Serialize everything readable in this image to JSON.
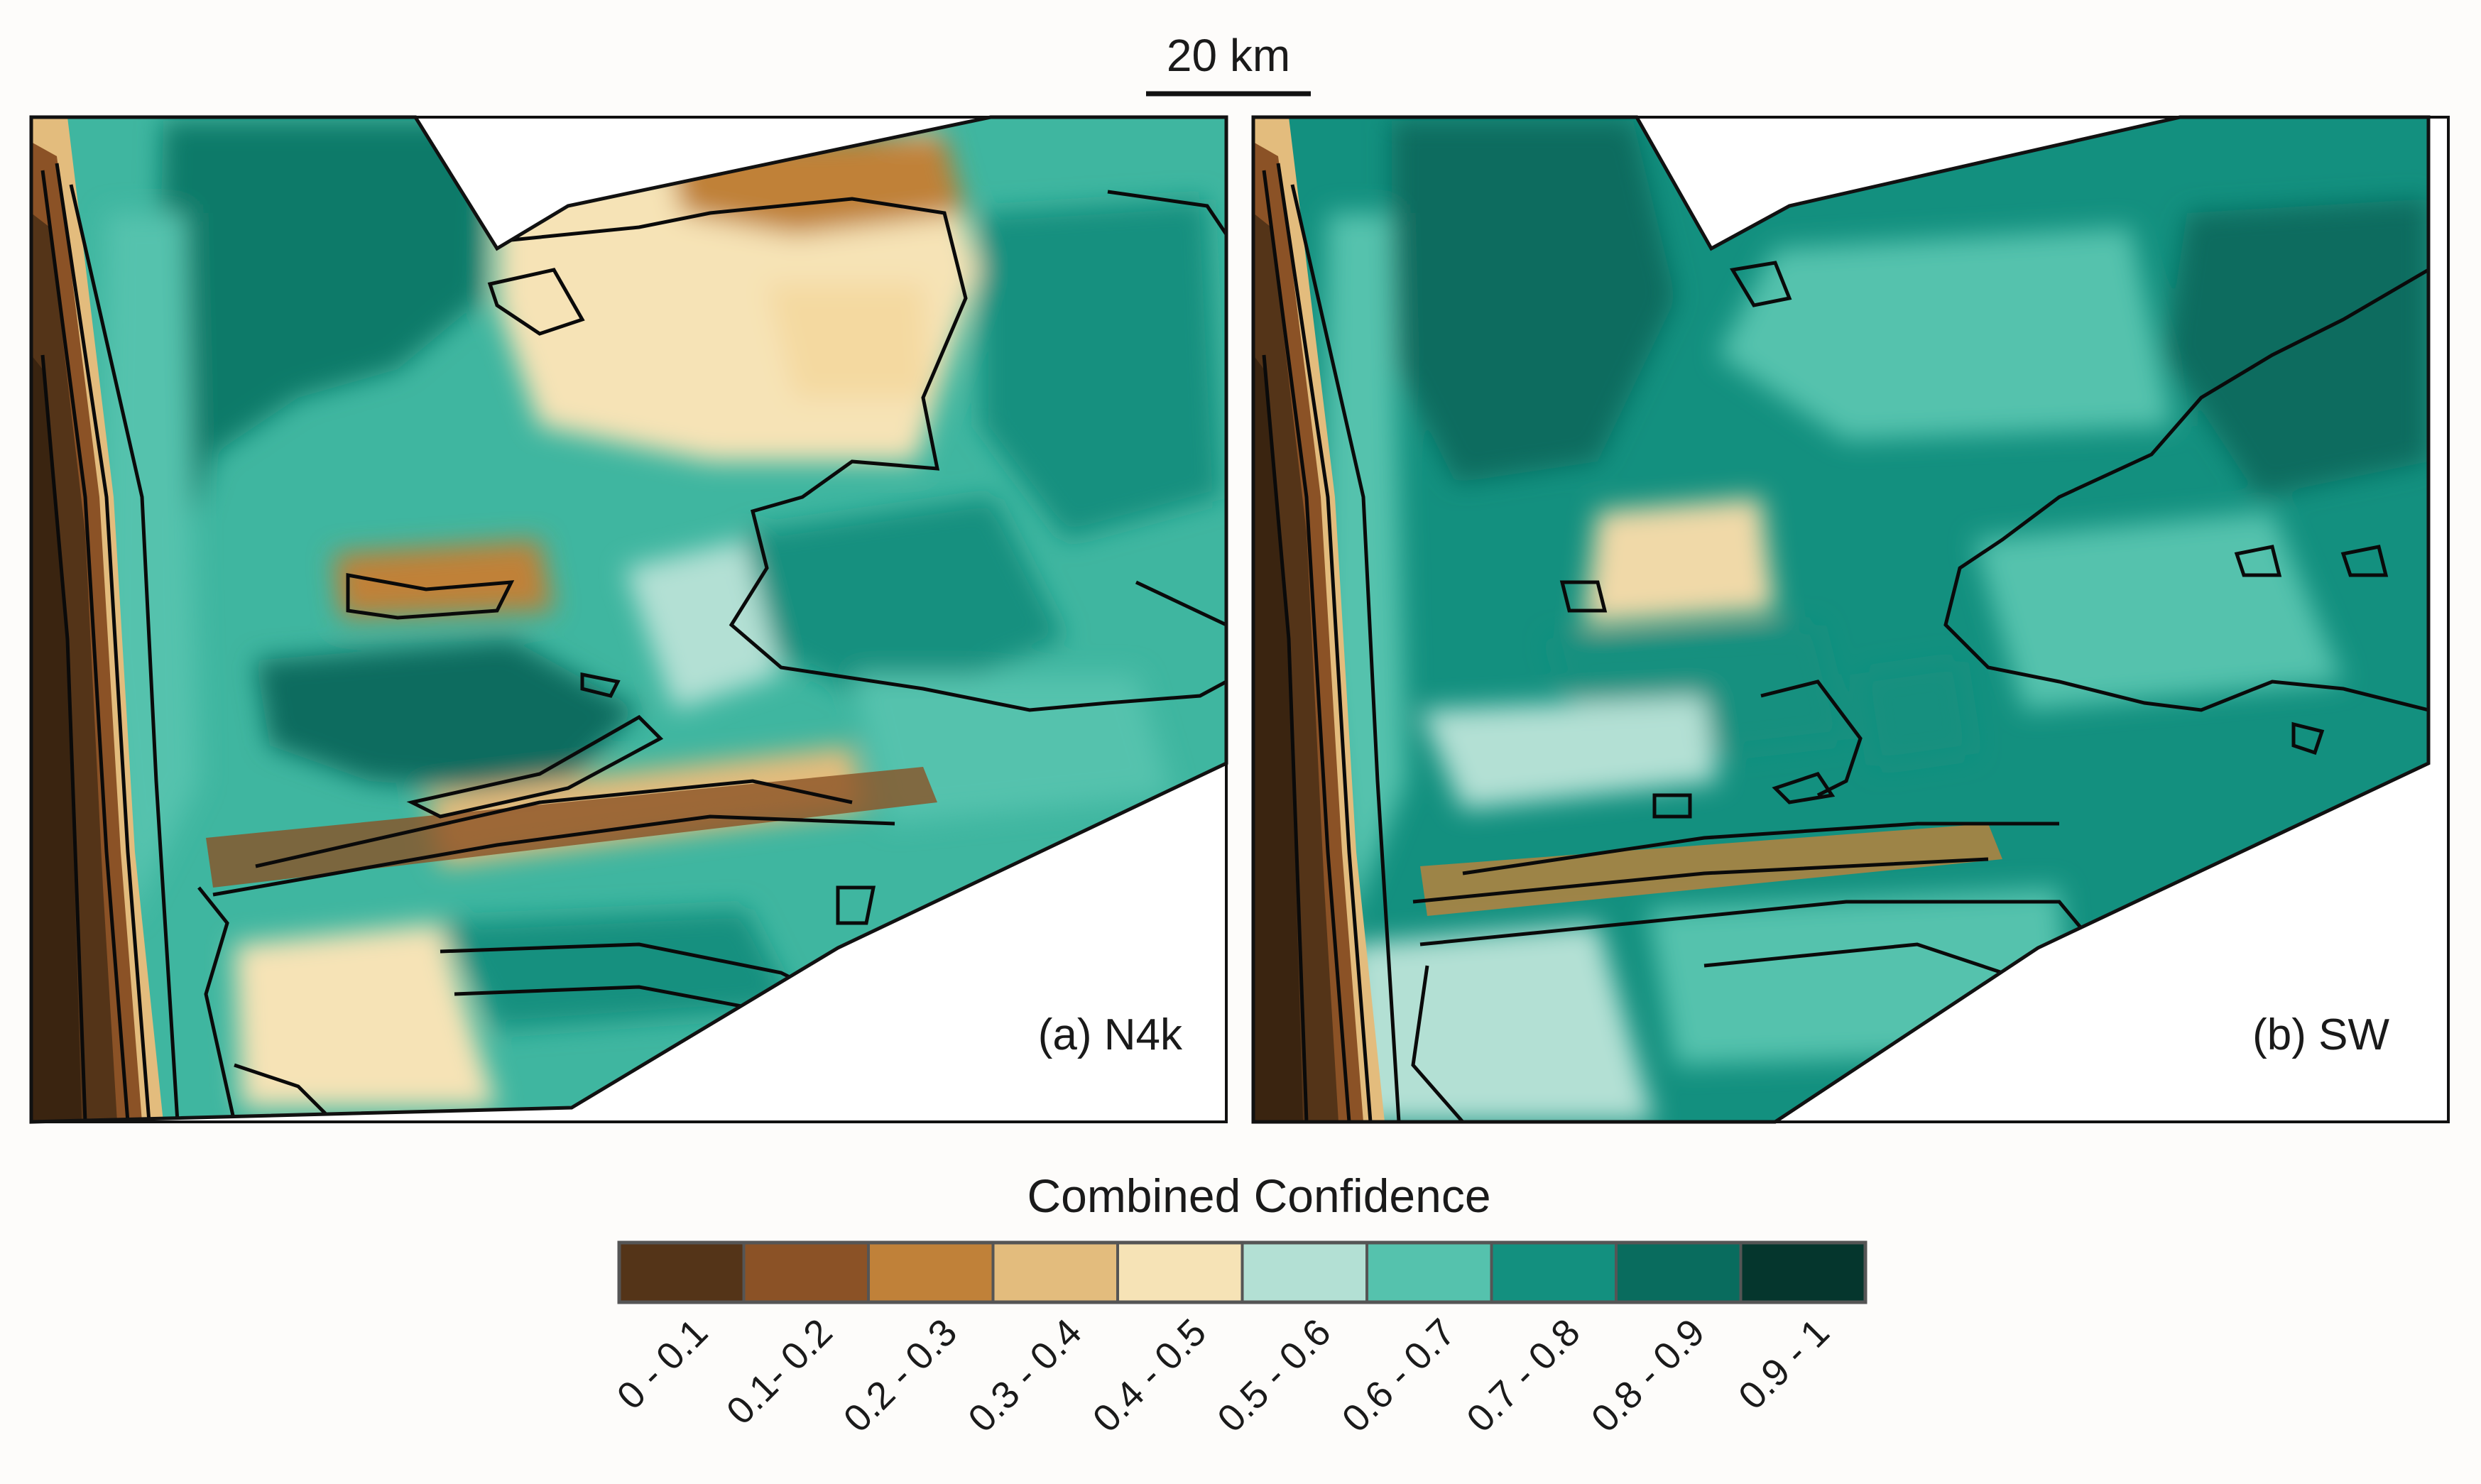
{
  "scale_bar": {
    "label": "20 km"
  },
  "panels": [
    {
      "id": "a",
      "label": "(a) N4k"
    },
    {
      "id": "b",
      "label": "(b) SW"
    }
  ],
  "legend": {
    "title": "Combined Confidence",
    "bins": [
      {
        "label": "0 - 0.1",
        "color": "#543418"
      },
      {
        "label": "0.1- 0.2",
        "color": "#8b5226"
      },
      {
        "label": "0.2 - 0.3",
        "color": "#c08139"
      },
      {
        "label": "0.3 - 0.4",
        "color": "#e3bc7d"
      },
      {
        "label": "0.4 - 0.5",
        "color": "#f6e3b6"
      },
      {
        "label": "0.5 - 0.6",
        "color": "#b3e0d4"
      },
      {
        "label": "0.6 - 0.7",
        "color": "#55c2ad"
      },
      {
        "label": "0.7 - 0.8",
        "color": "#13907f"
      },
      {
        "label": "0.8 - 0.9",
        "color": "#096c5e"
      },
      {
        "label": "0.9 - 1",
        "color": "#05362d"
      }
    ]
  }
}
